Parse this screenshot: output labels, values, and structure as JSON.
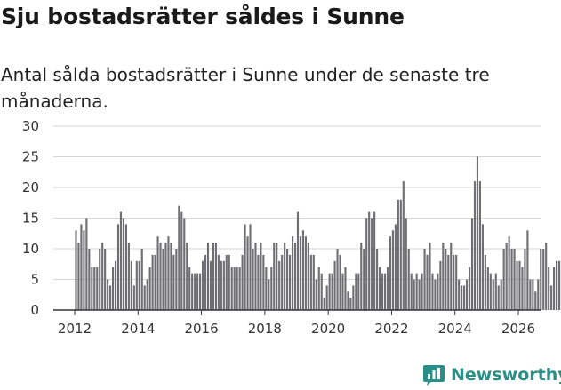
{
  "title": "Sju bostadsrätter såldes i Sunne",
  "subtitle": "Antal sålda bostadsrätter i Sunne under de senaste tre månaderna.",
  "brand": {
    "name": "Newsworthy",
    "logo_icon": "newsworthy-chart-icon"
  },
  "colors": {
    "bar": "#6f6f73",
    "highlight": "#22a29b",
    "grid": "#d6d6d6",
    "axis": "#333333",
    "brand": "#2a8f86"
  },
  "chart_data": {
    "type": "bar",
    "title": "Sju bostadsrätter såldes i Sunne",
    "subtitle": "Antal sålda bostadsrätter i Sunne under de senaste tre månaderna.",
    "xlabel": "",
    "ylabel": "",
    "ylim": [
      0,
      30
    ],
    "yticks": [
      0,
      5,
      10,
      15,
      20,
      25,
      30
    ],
    "xticks": [
      "2012",
      "2014",
      "2016",
      "2018",
      "2020",
      "2022",
      "2024",
      "2026"
    ],
    "xrange": [
      2012,
      2026
    ],
    "grid": true,
    "start": {
      "year": 2012,
      "month": 1
    },
    "granularity": "monthly (rolling three-month count)",
    "values": [
      13,
      11,
      14,
      13,
      15,
      10,
      7,
      7,
      7,
      10,
      11,
      10,
      5,
      4,
      7,
      8,
      14,
      16,
      15,
      14,
      11,
      8,
      4,
      8,
      8,
      10,
      4,
      5,
      7,
      9,
      9,
      12,
      11,
      10,
      11,
      12,
      11,
      9,
      10,
      17,
      16,
      15,
      11,
      7,
      6,
      6,
      6,
      6,
      8,
      9,
      11,
      8,
      11,
      11,
      9,
      8,
      8,
      9,
      9,
      7,
      7,
      7,
      7,
      9,
      14,
      12,
      14,
      10,
      11,
      9,
      11,
      9,
      7,
      5,
      7,
      11,
      11,
      8,
      9,
      11,
      10,
      9,
      12,
      11,
      16,
      12,
      13,
      12,
      11,
      9,
      9,
      5,
      7,
      6,
      2,
      4,
      6,
      6,
      8,
      10,
      9,
      6,
      7,
      3,
      2,
      4,
      6,
      6,
      11,
      10,
      15,
      16,
      15,
      16,
      10,
      7,
      6,
      6,
      7,
      12,
      13,
      14,
      18,
      18,
      21,
      15,
      10,
      6,
      5,
      6,
      5,
      6,
      10,
      9,
      11,
      6,
      5,
      6,
      8,
      11,
      10,
      9,
      11,
      9,
      9,
      5,
      4,
      4,
      5,
      7,
      15,
      21,
      25,
      21,
      14,
      9,
      7,
      6,
      5,
      6,
      4,
      5,
      10,
      11,
      12,
      10,
      10,
      8,
      8,
      7,
      10,
      13,
      5,
      5,
      3,
      5,
      10,
      10,
      11,
      7,
      4,
      7,
      8,
      8,
      8,
      7
    ],
    "last_value": 7,
    "last_value_label": "7",
    "highlight_last": true
  }
}
